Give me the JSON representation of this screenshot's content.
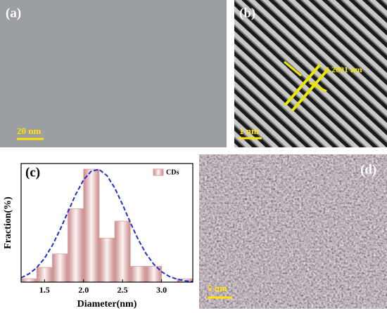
{
  "panels": [
    {
      "label": "(a)",
      "scale": "20 nm"
    },
    {
      "label": "(b)",
      "scale": "1 nm",
      "annotation": "0.2091 nm"
    },
    {
      "label": "(d)",
      "scale": "5 nm"
    }
  ],
  "chart_data": {
    "type": "histogram",
    "label": "(c)",
    "x_label": "Diameter(nm)",
    "y_label": "Fraction(%)",
    "bins": [
      1.2,
      1.4,
      1.6,
      1.8,
      2.0,
      2.2,
      2.4,
      2.6,
      2.8,
      3.0,
      3.2,
      3.4
    ],
    "series": [
      {
        "name": "CDs",
        "color": "#d9a0a0",
        "values": [
          3,
          13,
          25,
          65,
          100,
          39,
          54,
          14,
          14,
          0,
          3
        ]
      }
    ],
    "curve": {
      "color": "#1f2fd0",
      "x": [
        1.2,
        1.3,
        1.4,
        1.5,
        1.6,
        1.7,
        1.8,
        1.9,
        2.0,
        2.1,
        2.2,
        2.3,
        2.4,
        2.5,
        2.6,
        2.7,
        2.8,
        2.9,
        3.0,
        3.1,
        3.2,
        3.3,
        3.4
      ],
      "values": [
        3.8,
        7.3,
        12.8,
        21.1,
        32.5,
        46.5,
        62.2,
        77.7,
        90.5,
        98.3,
        99.7,
        94.3,
        83.3,
        68.6,
        52.7,
        37.8,
        25.3,
        15.8,
        9.2,
        5.0,
        2.5,
        1.2,
        0.5
      ]
    },
    "xlim": [
      1.2,
      3.4
    ],
    "ylim": [
      0,
      105
    ],
    "xticks": [
      1.5,
      {
        "value": 2.0,
        "label": "2.0"
      },
      2.5,
      {
        "value": 3.0,
        "label": "3.0"
      }
    ],
    "legend": "upper right"
  }
}
